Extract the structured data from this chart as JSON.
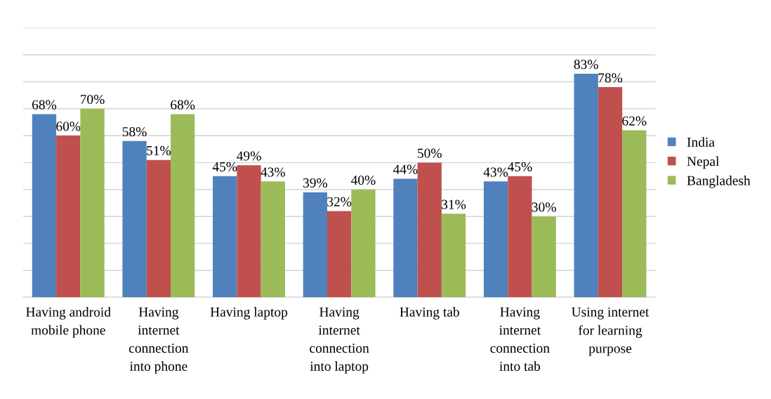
{
  "chart_data": {
    "type": "bar",
    "categories": [
      "Having android mobile phone",
      "Having internet connection into phone",
      "Having laptop",
      "Having internet connection into laptop",
      "Having tab",
      "Having internet connection into tab",
      "Using internet for learning purpose"
    ],
    "series": [
      {
        "name": "India",
        "color": "#4f81bd",
        "values": [
          68,
          58,
          45,
          39,
          44,
          43,
          83
        ],
        "value_labels": [
          "68%",
          "58%",
          "45%",
          "39%",
          "44%",
          "43%",
          "83%"
        ]
      },
      {
        "name": "Nepal",
        "color": "#c0504d",
        "values": [
          60,
          51,
          49,
          32,
          50,
          45,
          78
        ],
        "value_labels": [
          "60%",
          "51%",
          "49%",
          "32%",
          "50%",
          "45%",
          "78%"
        ]
      },
      {
        "name": "Bangladesh",
        "color": "#9bbb59",
        "values": [
          70,
          68,
          43,
          40,
          31,
          30,
          62
        ],
        "value_labels": [
          "70%",
          "68%",
          "43%",
          "40%",
          "31%",
          "30%",
          "62%"
        ]
      }
    ],
    "ylim": [
      0,
      100
    ],
    "yticks": [
      {
        "value": 0,
        "label": null
      },
      {
        "value": 10,
        "label": null
      },
      {
        "value": 20,
        "label": null
      },
      {
        "value": 30,
        "label": null
      },
      {
        "value": 40,
        "label": null
      },
      {
        "value": 50,
        "label": null
      },
      {
        "value": 60,
        "label": null
      },
      {
        "value": 70,
        "label": null
      },
      {
        "value": 80,
        "label": null
      },
      {
        "value": 90,
        "label": null
      },
      {
        "value": 100,
        "label": null
      }
    ],
    "tick_labels": "x",
    "grid": "y",
    "legend": "right"
  }
}
